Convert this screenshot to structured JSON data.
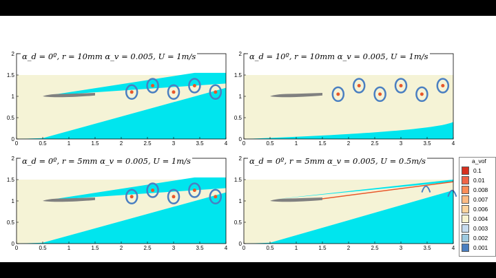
{
  "panels": [
    {
      "id": "p1",
      "title": "α_d = 0º, r = 10mm α_v = 0.005, U = 1m/s"
    },
    {
      "id": "p2",
      "title": "α_d = 10º, r = 10mm α_v = 0.005, U = 1m/s"
    },
    {
      "id": "p3",
      "title": "α_d = 0º, r = 5mm α_v = 0.005, U = 1m/s"
    },
    {
      "id": "p4",
      "title": "α_d = 0º, r = 5mm α_v = 0.005, U = 0.5m/s"
    }
  ],
  "axes": {
    "x_ticks": [
      "0",
      "0.5",
      "1",
      "1.5",
      "2",
      "2.5",
      "3",
      "3.5",
      "4"
    ],
    "y_ticks": [
      "0",
      "0.5",
      "1",
      "1.5",
      "2"
    ]
  },
  "legend": {
    "title": "a_vof",
    "entries": [
      {
        "label": "0.1",
        "color": "#d7301f"
      },
      {
        "label": "0.01",
        "color": "#ef6548"
      },
      {
        "label": "0.008",
        "color": "#fc8d59"
      },
      {
        "label": "0.007",
        "color": "#fdbb84"
      },
      {
        "label": "0.006",
        "color": "#fdd49e"
      },
      {
        "label": "0.004",
        "color": "#f7f3d0"
      },
      {
        "label": "0.003",
        "color": "#c6dbef"
      },
      {
        "label": "0.002",
        "color": "#9ecae1"
      },
      {
        "label": "0.001",
        "color": "#4a7fc1"
      }
    ]
  },
  "colors": {
    "water": "#00e5ee",
    "air": "#f5f3d6",
    "foil": "#808080",
    "bubble": "#e8572a",
    "vortex": "#4a7fc1"
  }
}
